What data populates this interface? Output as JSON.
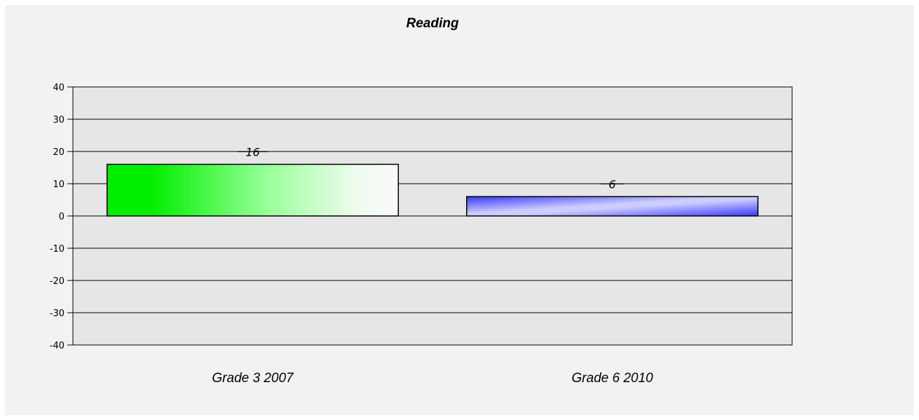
{
  "chart_data": {
    "type": "bar",
    "title": "Reading",
    "xlabel": "",
    "ylabel": "",
    "categories": [
      "Grade 3 2007",
      "Grade 6 2010"
    ],
    "values": [
      16,
      6
    ],
    "data_labels": [
      "16",
      "6"
    ],
    "ylim": [
      -40,
      40
    ],
    "yticks": [
      40,
      30,
      20,
      10,
      0,
      -10,
      -20,
      -30,
      -40
    ],
    "ytick_labels": [
      "40",
      "30",
      "20",
      "10",
      "0",
      "-10",
      "-20",
      "-30",
      "-40"
    ],
    "grid": true,
    "legend": "none",
    "colors": {
      "bar_1": "#00ee00",
      "bar_2": "#3838ff",
      "plot_background": "#e6e6e6",
      "page_background": "#f2f2f2"
    }
  }
}
